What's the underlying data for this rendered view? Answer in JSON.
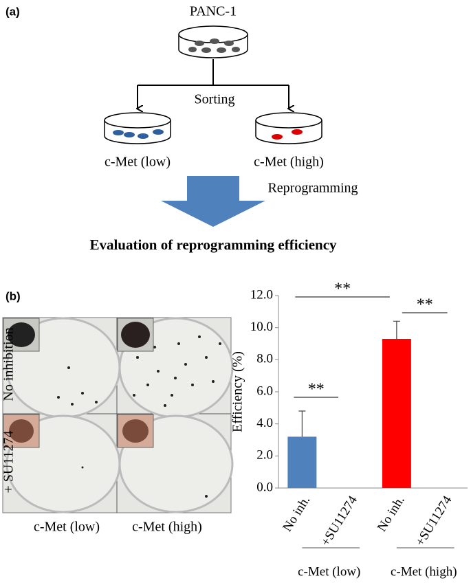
{
  "panel_a": {
    "label": "(a)",
    "top": "PANC-1",
    "step1": "Sorting",
    "left": "c-Met (low)",
    "right": "c-Met (high)",
    "step2": "Reprogramming",
    "result": "Evaluation of reprogramming efficiency"
  },
  "panel_b": {
    "label": "(b)",
    "row1": "No inhibition",
    "row2": "+ SU11274",
    "col1": "c-Met (low)",
    "col2": "c-Met (high)"
  },
  "chart_data": {
    "type": "bar",
    "ylabel": "Efficiency (%)",
    "categories": [
      "No inh.",
      "+SU11274",
      "No inh.",
      "+SU11274"
    ],
    "values": [
      3.2,
      0,
      9.3,
      0
    ],
    "errors": [
      1.6,
      null,
      1.1,
      null
    ],
    "colors": [
      "#4f81bd",
      "#4f81bd",
      "#ff0000",
      "#ff0000"
    ],
    "groups": [
      "c-Met (low)",
      "c-Met (high)"
    ],
    "annotations": [
      "**",
      "**",
      "**"
    ],
    "ylim": [
      0,
      12
    ],
    "yticks": [
      {
        "value": 0,
        "label": "0.0"
      },
      {
        "value": 2,
        "label": "2.0"
      },
      {
        "value": 4,
        "label": "4.0"
      },
      {
        "value": 6,
        "label": "6.0"
      },
      {
        "value": 8,
        "label": "8.0"
      },
      {
        "value": 10,
        "label": "10.0"
      },
      {
        "value": 12,
        "label": "12.0"
      }
    ]
  }
}
